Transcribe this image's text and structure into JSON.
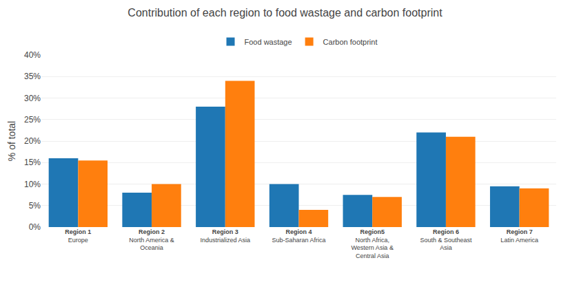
{
  "chart_data": {
    "type": "bar",
    "title": "Contribution of each region to food wastage and carbon footprint",
    "ylabel": "% of total",
    "categories": [
      "Europe",
      "North America &\nOceania",
      "Industrialized Asia",
      "Sub-Saharan Africa",
      "North Africa,\nWestern Asia &\nCentral Asia",
      "South & Southeast\nAsia",
      "Latin America"
    ],
    "series": [
      {
        "name": "Food wastage",
        "values": [
          16,
          8,
          28,
          10,
          7.5,
          22,
          9.5
        ]
      },
      {
        "name": "Carbon footprint",
        "values": [
          15.5,
          10,
          34,
          4,
          7,
          21,
          9
        ]
      }
    ],
    "annotations": [
      {
        "category": "Europe",
        "text": "Region 1"
      },
      {
        "category": "North America &\nOceania",
        "text": "Region 2"
      },
      {
        "category": "Industrialized Asia",
        "text": "Region 3"
      },
      {
        "category": "Sub-Saharan Africa",
        "text": "Region 4"
      },
      {
        "category": "North Africa,\nWestern Asia &\nCentral Asia",
        "text": "Region5"
      },
      {
        "category": "South & Southeast\nAsia",
        "text": "Region 6"
      },
      {
        "category": "Latin America",
        "text": "Region 7"
      }
    ],
    "ylim": [
      0,
      40
    ],
    "yticks": [
      {
        "value": 0,
        "label": "0%"
      },
      {
        "value": 5,
        "label": "5%"
      },
      {
        "value": 10,
        "label": "10%"
      },
      {
        "value": 15,
        "label": "15%"
      },
      {
        "value": 20,
        "label": "20%"
      },
      {
        "value": 25,
        "label": "25%"
      },
      {
        "value": 30,
        "label": "30%"
      },
      {
        "value": 35,
        "label": "35%"
      },
      {
        "value": 40,
        "label": "40%"
      }
    ],
    "grid": true,
    "legend": "top"
  }
}
